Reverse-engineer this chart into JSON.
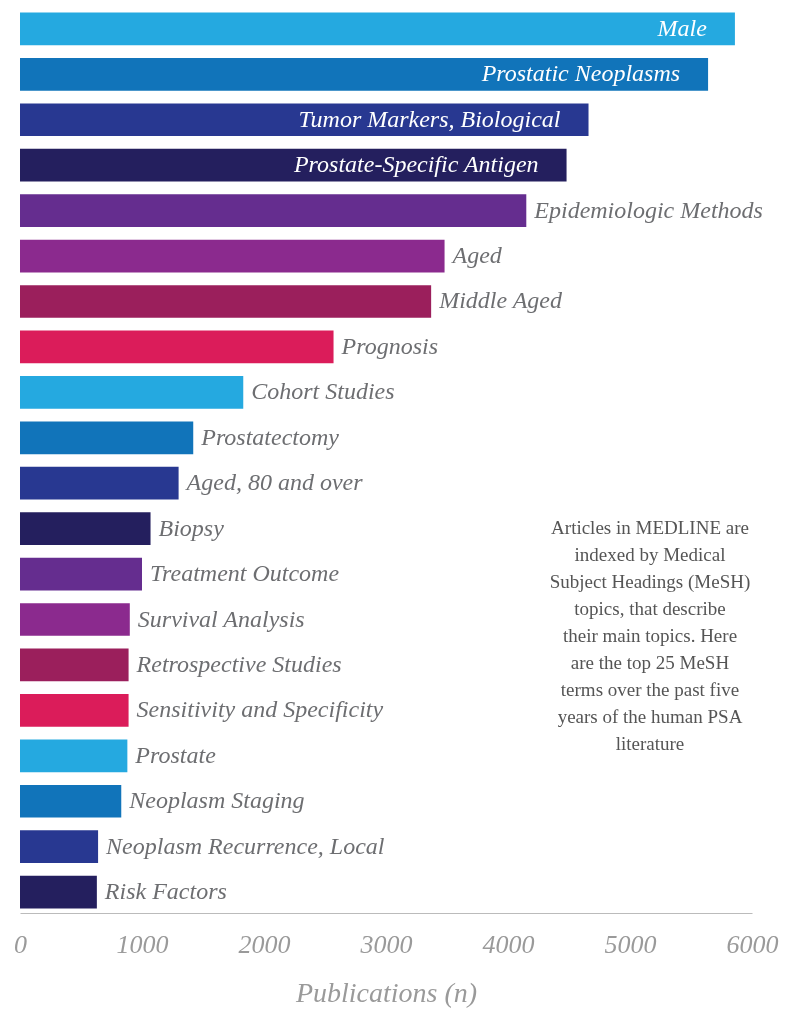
{
  "chart_data": {
    "type": "bar",
    "orientation": "horizontal",
    "xlabel": "Publications (n)",
    "categories": [
      "Male",
      "Prostatic Neoplasms",
      "Tumor Markers, Biological",
      "Prostate-Specific Antigen",
      "Epidemiologic Methods",
      "Aged",
      "Middle Aged",
      "Prognosis",
      "Cohort Studies",
      "Prostatectomy",
      "Aged, 80 and over",
      "Biopsy",
      "Treatment Outcome",
      "Survival Analysis",
      "Retrospective Studies",
      "Sensitivity and Specificity",
      "Prostate",
      "Neoplasm Staging",
      "Neoplasm Recurrence, Local",
      "Risk Factors"
    ],
    "values": [
      5860,
      5640,
      4660,
      4480,
      4150,
      3480,
      3370,
      2570,
      1830,
      1420,
      1300,
      1070,
      1000,
      900,
      890,
      890,
      880,
      830,
      640,
      630
    ],
    "colors": [
      "#25a9e0",
      "#1174ba",
      "#283891",
      "#241f5e",
      "#652d8f",
      "#8b2a8e",
      "#9b1f5c",
      "#db1c5a",
      "#25a9e0",
      "#1174ba",
      "#283891",
      "#241f5e",
      "#652d8f",
      "#8b2a8e",
      "#9b1f5c",
      "#db1c5a",
      "#25a9e0",
      "#1174ba",
      "#283891",
      "#241f5e"
    ],
    "xlim": [
      0,
      6000
    ],
    "xticks": [
      0,
      1000,
      2000,
      3000,
      4000,
      5000,
      6000
    ],
    "grid": false,
    "annotations": [
      "Articles in MEDLINE are indexed by Medical Subject Headings (MeSH) topics, that describe their main topics. Here are the top 25 MeSH terms over the past five years of the human PSA literature"
    ]
  }
}
